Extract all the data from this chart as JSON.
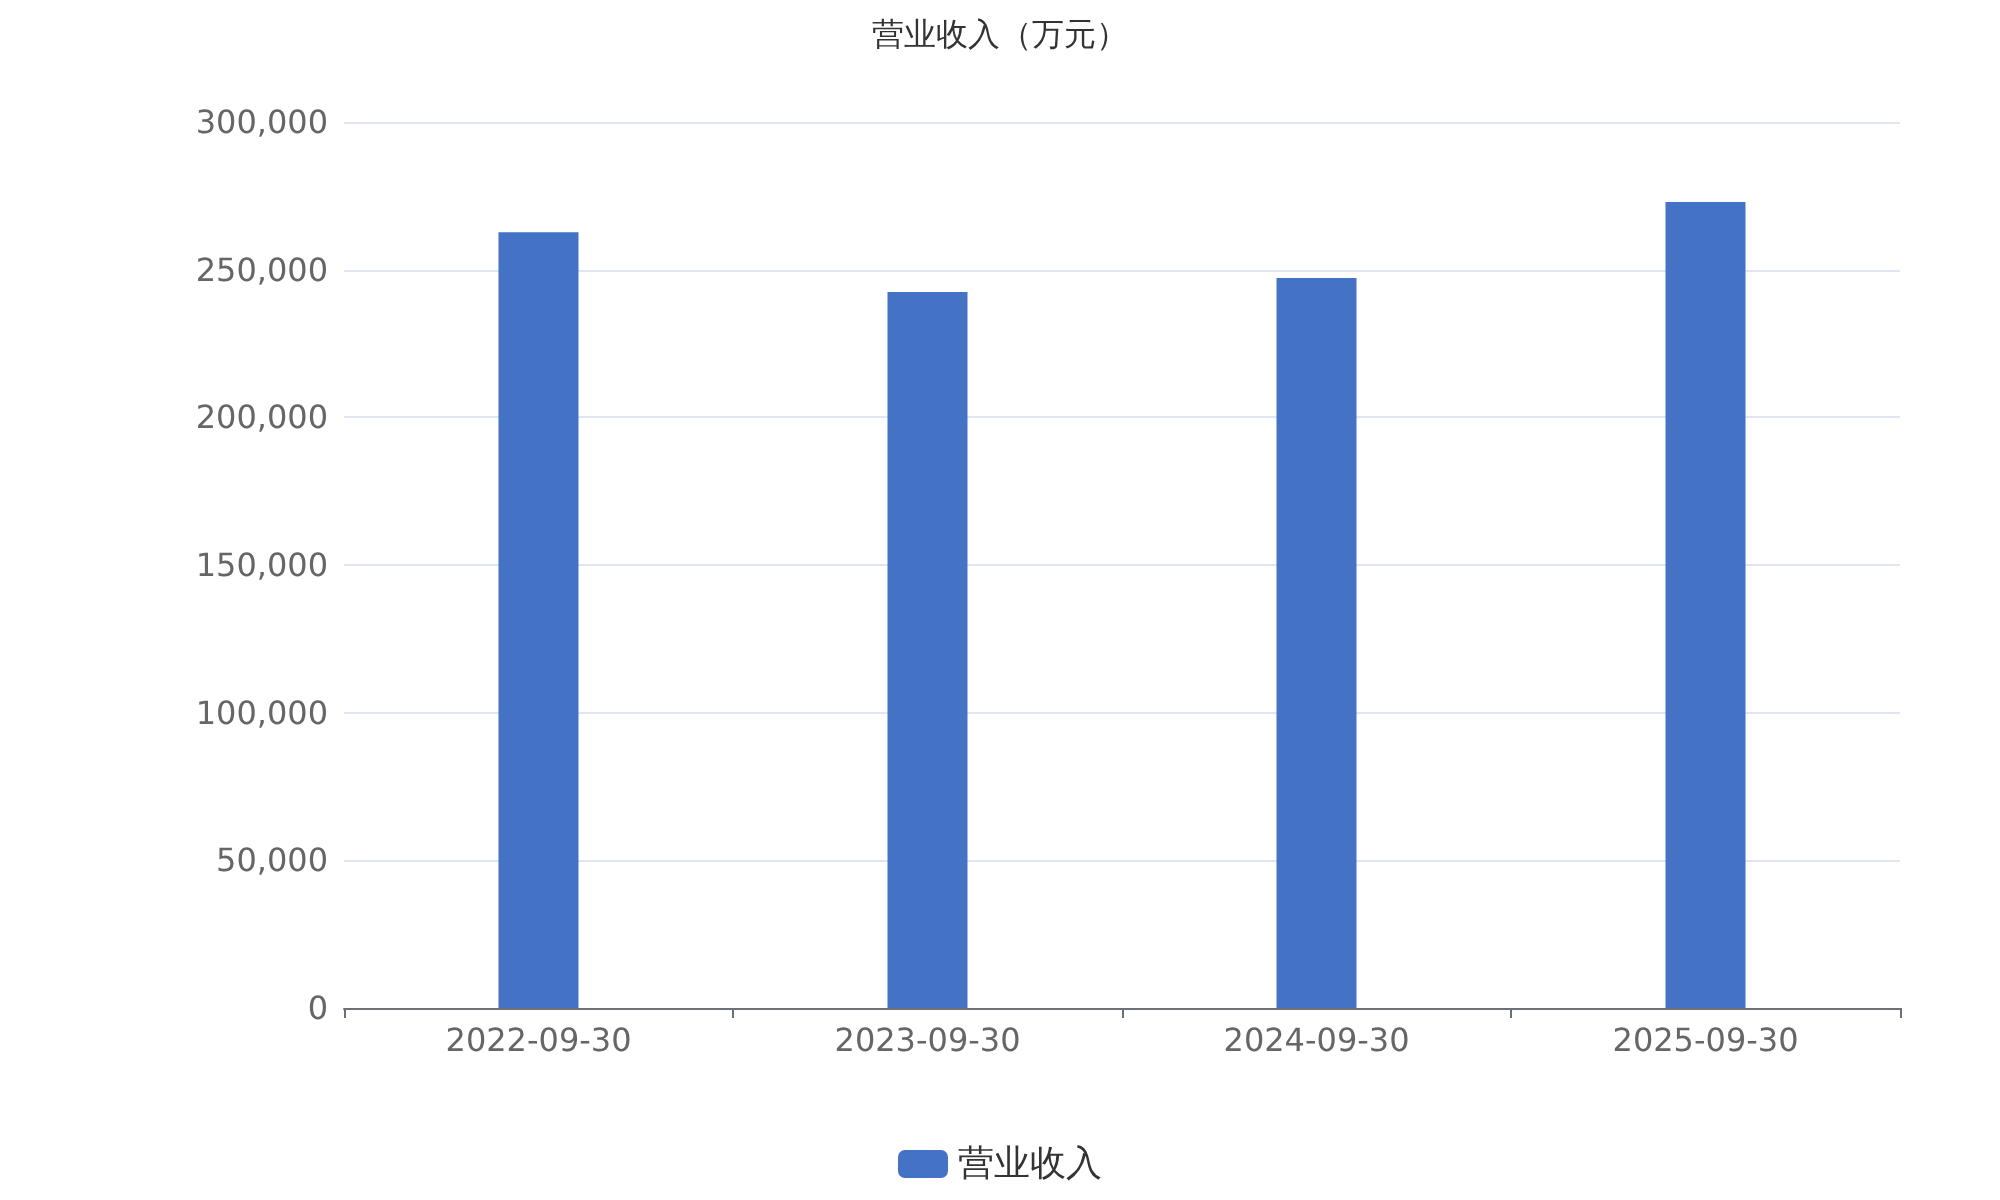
{
  "chart_data": {
    "type": "bar",
    "title": "营业收入（万元）",
    "categories": [
      "2022-09-30",
      "2023-09-30",
      "2024-09-30",
      "2025-09-30"
    ],
    "series": [
      {
        "name": "营业收入",
        "color": "#4472c4",
        "values": [
          262700,
          242400,
          247200,
          272900
        ]
      }
    ],
    "ylim": [
      0,
      300000
    ],
    "yticks": [
      0,
      {
        "value": 50000,
        "label": "50,000"
      },
      {
        "value": 100000,
        "label": "100,000"
      },
      {
        "value": 150000,
        "label": "150,000"
      },
      {
        "value": 200000,
        "label": "200,000"
      },
      {
        "value": 250000,
        "label": "250,000"
      },
      {
        "value": 300000,
        "label": "300,000"
      }
    ],
    "grid": "y",
    "legend": "bottom"
  }
}
